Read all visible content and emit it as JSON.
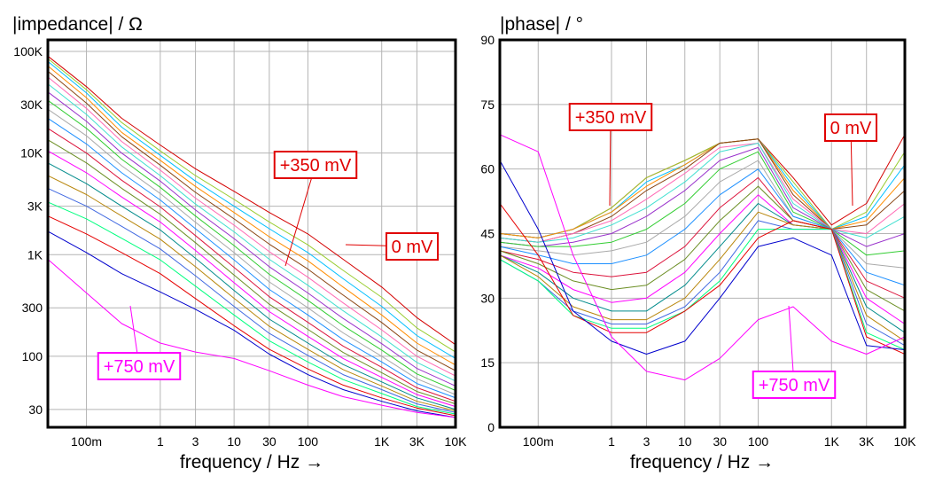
{
  "chart_data": [
    {
      "type": "line",
      "title": "|impedance| / Ω",
      "xlabel": "frequency / Hz →",
      "ylabel": "",
      "x_scale": "log",
      "y_scale": "log",
      "xlim": [
        0.03,
        10000
      ],
      "ylim": [
        20,
        130000
      ],
      "x_ticks": [
        {
          "v": 0.1,
          "label": "100m"
        },
        {
          "v": 1,
          "label": "1"
        },
        {
          "v": 3,
          "label": "3"
        },
        {
          "v": 10,
          "label": "10"
        },
        {
          "v": 30,
          "label": "30"
        },
        {
          "v": 100,
          "label": "100"
        },
        {
          "v": 1000,
          "label": "1K"
        },
        {
          "v": 3000,
          "label": "3K"
        },
        {
          "v": 10000,
          "label": "10K"
        }
      ],
      "y_ticks": [
        {
          "v": 30,
          "label": "30"
        },
        {
          "v": 100,
          "label": "100"
        },
        {
          "v": 300,
          "label": "300"
        },
        {
          "v": 1000,
          "label": "1K"
        },
        {
          "v": 3000,
          "label": "3K"
        },
        {
          "v": 10000,
          "label": "10K"
        },
        {
          "v": 30000,
          "label": "30K"
        },
        {
          "v": 100000,
          "label": "100K"
        }
      ],
      "grid": true,
      "x": [
        0.03,
        0.1,
        0.3,
        1,
        3,
        10,
        30,
        100,
        300,
        1000,
        3000,
        10000
      ],
      "series": [
        {
          "color": "#d40000",
          "values": [
            90000,
            45000,
            22000,
            12000,
            7000,
            4200,
            2600,
            1600,
            900,
            480,
            240,
            130
          ]
        },
        {
          "color": "#9acd32",
          "values": [
            85000,
            42000,
            20000,
            10500,
            6000,
            3500,
            2100,
            1250,
            700,
            380,
            190,
            110
          ]
        },
        {
          "color": "#00bfff",
          "values": [
            80000,
            39000,
            18000,
            9500,
            5300,
            3000,
            1800,
            1050,
            580,
            310,
            160,
            95
          ]
        },
        {
          "color": "#ff8c00",
          "values": [
            72000,
            35000,
            16000,
            8500,
            4700,
            2600,
            1500,
            870,
            480,
            255,
            135,
            82
          ]
        },
        {
          "color": "#8b4513",
          "values": [
            64000,
            31000,
            14500,
            7600,
            4100,
            2250,
            1270,
            720,
            400,
            215,
            115,
            72
          ]
        },
        {
          "color": "#ff69b4",
          "values": [
            56000,
            27500,
            13000,
            6800,
            3600,
            1950,
            1070,
            600,
            335,
            182,
            100,
            64
          ]
        },
        {
          "color": "#40e0d0",
          "values": [
            48000,
            24000,
            11500,
            6000,
            3150,
            1680,
            900,
            500,
            280,
            155,
            87,
            57
          ]
        },
        {
          "color": "#9932cc",
          "values": [
            40000,
            20500,
            10000,
            5300,
            2750,
            1440,
            760,
            420,
            236,
            133,
            76,
            51
          ]
        },
        {
          "color": "#32cd32",
          "values": [
            33000,
            17500,
            8700,
            4600,
            2400,
            1230,
            640,
            355,
            200,
            115,
            67,
            46
          ]
        },
        {
          "color": "#a9a9a9",
          "values": [
            27000,
            14800,
            7500,
            4000,
            2080,
            1050,
            540,
            300,
            170,
            100,
            60,
            42
          ]
        },
        {
          "color": "#1e90ff",
          "values": [
            22000,
            12300,
            6400,
            3450,
            1800,
            890,
            455,
            255,
            146,
            88,
            54,
            39
          ]
        },
        {
          "color": "#dc143c",
          "values": [
            17500,
            10000,
            5400,
            2950,
            1540,
            750,
            385,
            216,
            126,
            78,
            49,
            36
          ]
        },
        {
          "color": "#6b8e23",
          "values": [
            13500,
            8000,
            4500,
            2500,
            1310,
            630,
            325,
            184,
            109,
            69,
            45,
            34
          ]
        },
        {
          "color": "#ff00ff",
          "values": [
            10500,
            6400,
            3700,
            2100,
            1100,
            530,
            275,
            157,
            95,
            62,
            42,
            32
          ]
        },
        {
          "color": "#008b8b",
          "values": [
            8000,
            5000,
            3000,
            1750,
            920,
            445,
            232,
            135,
            83,
            56,
            39,
            30
          ]
        },
        {
          "color": "#b8860b",
          "values": [
            6000,
            3900,
            2400,
            1420,
            760,
            372,
            197,
            117,
            74,
            51,
            36,
            29
          ]
        },
        {
          "color": "#4169e1",
          "values": [
            4500,
            3000,
            1900,
            1140,
            620,
            310,
            168,
            102,
            66,
            47,
            34,
            28
          ]
        },
        {
          "color": "#00ff7f",
          "values": [
            3300,
            2250,
            1450,
            890,
            490,
            255,
            142,
            88,
            59,
            43,
            32,
            27
          ]
        },
        {
          "color": "#e60000",
          "values": [
            2400,
            1600,
            1050,
            650,
            370,
            200,
            117,
            75,
            52,
            39,
            31,
            26
          ]
        },
        {
          "color": "#0000cd",
          "values": [
            1700,
            1050,
            650,
            430,
            290,
            180,
            105,
            66,
            47,
            36,
            29,
            25
          ]
        },
        {
          "color": "#ff00ff",
          "values": [
            900,
            420,
            210,
            135,
            110,
            95,
            72,
            52,
            40,
            33,
            28,
            25
          ]
        }
      ],
      "annotations": [
        {
          "text": "+350 mV",
          "color": "#e00000",
          "x": 40,
          "y": 800
        },
        {
          "text": "0 mV",
          "color": "#e00000",
          "x": 300,
          "y": 1250
        },
        {
          "text": "+750 mV",
          "color": "#ff00ff",
          "x": 0.2,
          "y": 520
        }
      ]
    },
    {
      "type": "line",
      "title": "|phase| / °",
      "xlabel": "frequency / Hz →",
      "ylabel": "",
      "x_scale": "log",
      "y_scale": "linear",
      "xlim": [
        0.03,
        10000
      ],
      "ylim": [
        0,
        90
      ],
      "x_ticks": [
        {
          "v": 0.1,
          "label": "100m"
        },
        {
          "v": 1,
          "label": "1"
        },
        {
          "v": 3,
          "label": "3"
        },
        {
          "v": 10,
          "label": "10"
        },
        {
          "v": 30,
          "label": "30"
        },
        {
          "v": 100,
          "label": "100"
        },
        {
          "v": 1000,
          "label": "1K"
        },
        {
          "v": 3000,
          "label": "3K"
        },
        {
          "v": 10000,
          "label": "10K"
        }
      ],
      "y_ticks": [
        {
          "v": 0,
          "label": "0"
        },
        {
          "v": 15,
          "label": "15"
        },
        {
          "v": 30,
          "label": "30"
        },
        {
          "v": 45,
          "label": "45"
        },
        {
          "v": 60,
          "label": "60"
        },
        {
          "v": 75,
          "label": "75"
        },
        {
          "v": 90,
          "label": "90"
        }
      ],
      "grid": true,
      "x": [
        0.03,
        0.1,
        0.3,
        1,
        3,
        10,
        30,
        100,
        300,
        1000,
        3000,
        10000
      ],
      "series": [
        {
          "color": "#d40000",
          "values": [
            45,
            44,
            46,
            51,
            58,
            62,
            66,
            67,
            58,
            47,
            52,
            68
          ]
        },
        {
          "color": "#9acd32",
          "values": [
            45,
            44,
            46,
            51,
            58,
            62,
            66,
            67,
            57,
            46,
            50,
            64
          ]
        },
        {
          "color": "#00bfff",
          "values": [
            45,
            44,
            46,
            50,
            57,
            61,
            66,
            67,
            56,
            46,
            49,
            61
          ]
        },
        {
          "color": "#ff8c00",
          "values": [
            45,
            44,
            46,
            50,
            56,
            61,
            66,
            67,
            55,
            46,
            48,
            58
          ]
        },
        {
          "color": "#8b4513",
          "values": [
            44,
            43,
            45,
            49,
            55,
            60,
            66,
            67,
            54,
            46,
            47,
            55
          ]
        },
        {
          "color": "#ff69b4",
          "values": [
            44,
            43,
            45,
            48,
            53,
            59,
            65,
            66,
            53,
            46,
            45,
            52
          ]
        },
        {
          "color": "#40e0d0",
          "values": [
            44,
            43,
            44,
            47,
            51,
            57,
            64,
            66,
            52,
            46,
            44,
            49
          ]
        },
        {
          "color": "#9932cc",
          "values": [
            43,
            42,
            43,
            45,
            49,
            55,
            62,
            65,
            51,
            46,
            42,
            45
          ]
        },
        {
          "color": "#32cd32",
          "values": [
            43,
            42,
            42,
            43,
            46,
            52,
            60,
            64,
            50,
            46,
            40,
            41
          ]
        },
        {
          "color": "#a9a9a9",
          "values": [
            42,
            41,
            40,
            41,
            43,
            49,
            57,
            62,
            49,
            46,
            38,
            37
          ]
        },
        {
          "color": "#1e90ff",
          "values": [
            42,
            40,
            38,
            38,
            40,
            46,
            54,
            60,
            49,
            46,
            36,
            33
          ]
        },
        {
          "color": "#dc143c",
          "values": [
            41,
            39,
            36,
            35,
            36,
            42,
            51,
            58,
            48,
            46,
            34,
            30
          ]
        },
        {
          "color": "#6b8e23",
          "values": [
            41,
            38,
            34,
            32,
            33,
            39,
            48,
            56,
            48,
            46,
            32,
            27
          ]
        },
        {
          "color": "#ff00ff",
          "values": [
            40,
            37,
            32,
            29,
            30,
            36,
            45,
            54,
            47,
            46,
            30,
            24
          ]
        },
        {
          "color": "#008b8b",
          "values": [
            40,
            36,
            30,
            27,
            27,
            33,
            42,
            52,
            47,
            46,
            28,
            22
          ]
        },
        {
          "color": "#b8860b",
          "values": [
            40,
            35,
            28,
            25,
            25,
            30,
            39,
            50,
            47,
            46,
            26,
            20
          ]
        },
        {
          "color": "#4169e1",
          "values": [
            39,
            34,
            27,
            24,
            24,
            28,
            36,
            48,
            46,
            46,
            24,
            19
          ]
        },
        {
          "color": "#00ff7f",
          "values": [
            39,
            34,
            26,
            23,
            23,
            27,
            34,
            46,
            46,
            46,
            22,
            18
          ]
        },
        {
          "color": "#e60000",
          "values": [
            52,
            40,
            26,
            22,
            22,
            27,
            33,
            44,
            48,
            46,
            21,
            17
          ]
        },
        {
          "color": "#0000cd",
          "values": [
            62,
            46,
            27,
            20,
            17,
            20,
            30,
            42,
            44,
            40,
            19,
            18
          ]
        },
        {
          "color": "#ff00ff",
          "values": [
            68,
            64,
            40,
            21,
            13,
            11,
            16,
            25,
            28,
            20,
            17,
            21
          ]
        }
      ],
      "annotations": [
        {
          "text": "+350 mV",
          "color": "#e00000",
          "x": 0.8,
          "y": 53
        },
        {
          "text": "0 mV",
          "color": "#e00000",
          "x": 2000,
          "y": 50
        },
        {
          "text": "+750 mV",
          "color": "#ff00ff",
          "x": 200,
          "y": 28
        }
      ]
    }
  ]
}
